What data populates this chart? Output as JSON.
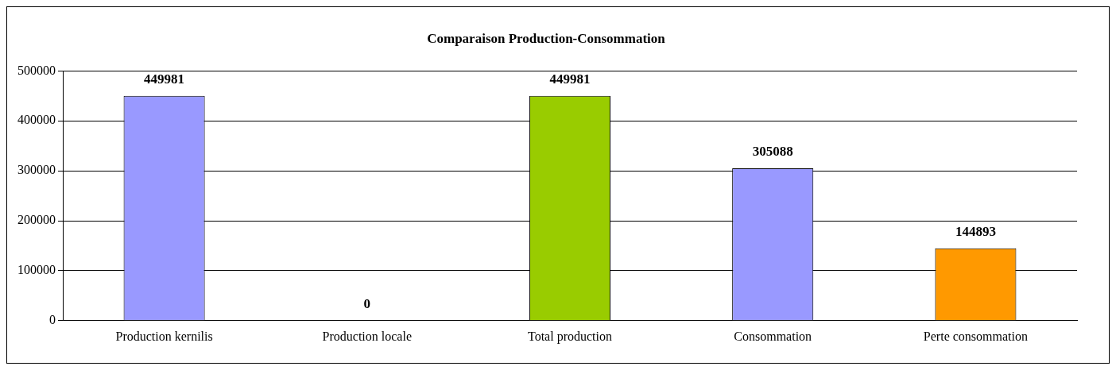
{
  "chart_data": {
    "type": "bar",
    "title": "Comparaison Production-Consommation",
    "categories": [
      "Production kernilis",
      "Production locale",
      "Total production",
      "Consommation",
      "Perte consommation"
    ],
    "values": [
      449981,
      0,
      449981,
      305088,
      144893
    ],
    "colors": [
      "#9999ff",
      "#9999ff",
      "#99cc00",
      "#9999ff",
      "#ff9900"
    ],
    "ylim": [
      0,
      500000
    ],
    "yticks": [
      0,
      100000,
      200000,
      300000,
      400000,
      500000
    ],
    "grid": "y",
    "legend": false,
    "data_labels": true
  }
}
